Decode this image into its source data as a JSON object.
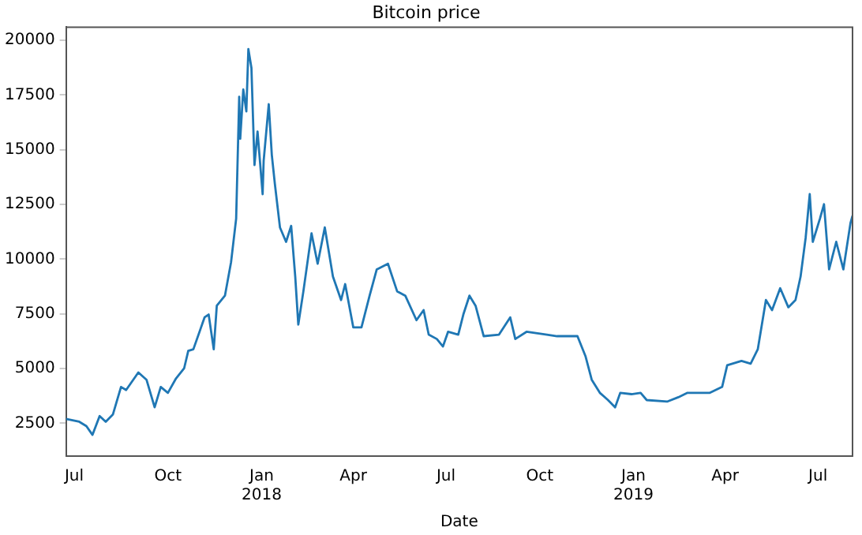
{
  "chart_data": {
    "type": "line",
    "title": "Bitcoin price",
    "xlabel": "Date",
    "grid": false,
    "legend": false,
    "marker": "none",
    "line_style": "solid",
    "xlim": [
      "2017-06-23",
      "2019-08-04"
    ],
    "xticks": [
      {
        "value": "2017-07-01",
        "label": "Jul"
      },
      {
        "value": "2017-10-01",
        "label": "Oct"
      },
      {
        "value": "2018-01-01",
        "label": "Jan\n2018"
      },
      {
        "value": "2018-04-01",
        "label": "Apr"
      },
      {
        "value": "2018-07-01",
        "label": "Jul"
      },
      {
        "value": "2018-10-01",
        "label": "Oct"
      },
      {
        "value": "2019-01-01",
        "label": "Jan\n2019"
      },
      {
        "value": "2019-04-01",
        "label": "Apr"
      },
      {
        "value": "2019-07-01",
        "label": "Jul"
      }
    ],
    "ylim": [
      1000,
      20600
    ],
    "yticks": [
      2500,
      5000,
      7500,
      10000,
      12500,
      15000,
      17500,
      20000
    ],
    "x": [
      "2017-06-23",
      "2017-07-06",
      "2017-07-13",
      "2017-07-19",
      "2017-07-26",
      "2017-08-01",
      "2017-08-08",
      "2017-08-16",
      "2017-08-21",
      "2017-09-02",
      "2017-09-10",
      "2017-09-18",
      "2017-09-24",
      "2017-10-01",
      "2017-10-09",
      "2017-10-17",
      "2017-10-21",
      "2017-10-26",
      "2017-11-06",
      "2017-11-10",
      "2017-11-15",
      "2017-11-18",
      "2017-11-26",
      "2017-12-02",
      "2017-12-07",
      "2017-12-10",
      "2017-12-11",
      "2017-12-14",
      "2017-12-17",
      "2017-12-19",
      "2017-12-22",
      "2017-12-25",
      "2017-12-28",
      "2018-01-02",
      "2018-01-03",
      "2018-01-08",
      "2018-01-11",
      "2018-01-14",
      "2018-01-19",
      "2018-01-25",
      "2018-01-30",
      "2018-02-03",
      "2018-02-06",
      "2018-02-11",
      "2018-02-19",
      "2018-02-25",
      "2018-03-04",
      "2018-03-12",
      "2018-03-20",
      "2018-03-24",
      "2018-04-01",
      "2018-04-09",
      "2018-04-17",
      "2018-04-24",
      "2018-05-05",
      "2018-05-14",
      "2018-05-22",
      "2018-06-02",
      "2018-06-09",
      "2018-06-14",
      "2018-06-22",
      "2018-06-28",
      "2018-07-03",
      "2018-07-13",
      "2018-07-18",
      "2018-07-24",
      "2018-07-30",
      "2018-08-07",
      "2018-08-22",
      "2018-09-02",
      "2018-09-07",
      "2018-09-18",
      "2018-10-08",
      "2018-10-18",
      "2018-11-07",
      "2018-11-15",
      "2018-11-21",
      "2018-11-29",
      "2018-12-07",
      "2018-12-14",
      "2018-12-19",
      "2018-12-30",
      "2019-01-08",
      "2019-01-14",
      "2019-02-03",
      "2019-02-14",
      "2019-02-23",
      "2019-03-17",
      "2019-03-29",
      "2019-04-03",
      "2019-04-17",
      "2019-04-26",
      "2019-05-03",
      "2019-05-11",
      "2019-05-17",
      "2019-05-25",
      "2019-06-02",
      "2019-06-09",
      "2019-06-14",
      "2019-06-19",
      "2019-06-23",
      "2019-06-26",
      "2019-07-03",
      "2019-07-07",
      "2019-07-12",
      "2019-07-19",
      "2019-07-26",
      "2019-08-02",
      "2019-08-04"
    ],
    "series": [
      {
        "color": "#1f77b4",
        "values": [
          2700,
          2570,
          2370,
          1970,
          2830,
          2570,
          2900,
          4160,
          4020,
          4820,
          4490,
          3230,
          4160,
          3890,
          4550,
          5020,
          5810,
          5880,
          7340,
          7470,
          5880,
          7870,
          8330,
          9860,
          11850,
          17420,
          15500,
          17750,
          16750,
          19600,
          18740,
          14300,
          15830,
          12970,
          14500,
          17080,
          14760,
          13440,
          11450,
          10790,
          11520,
          9200,
          7010,
          8530,
          11180,
          9790,
          11450,
          9200,
          8130,
          8860,
          6880,
          6880,
          8330,
          9530,
          9790,
          8530,
          8330,
          7210,
          7670,
          6550,
          6350,
          6010,
          6680,
          6550,
          7470,
          8330,
          7870,
          6480,
          6550,
          7340,
          6350,
          6680,
          6550,
          6480,
          6480,
          5550,
          4490,
          3890,
          3560,
          3230,
          3890,
          3830,
          3890,
          3560,
          3490,
          3690,
          3890,
          3890,
          4160,
          5150,
          5350,
          5220,
          5880,
          8130,
          7670,
          8670,
          7800,
          8130,
          9200,
          10980,
          12970,
          10790,
          11850,
          12510,
          9530,
          10790,
          9530,
          11650,
          11980
        ]
      }
    ]
  }
}
